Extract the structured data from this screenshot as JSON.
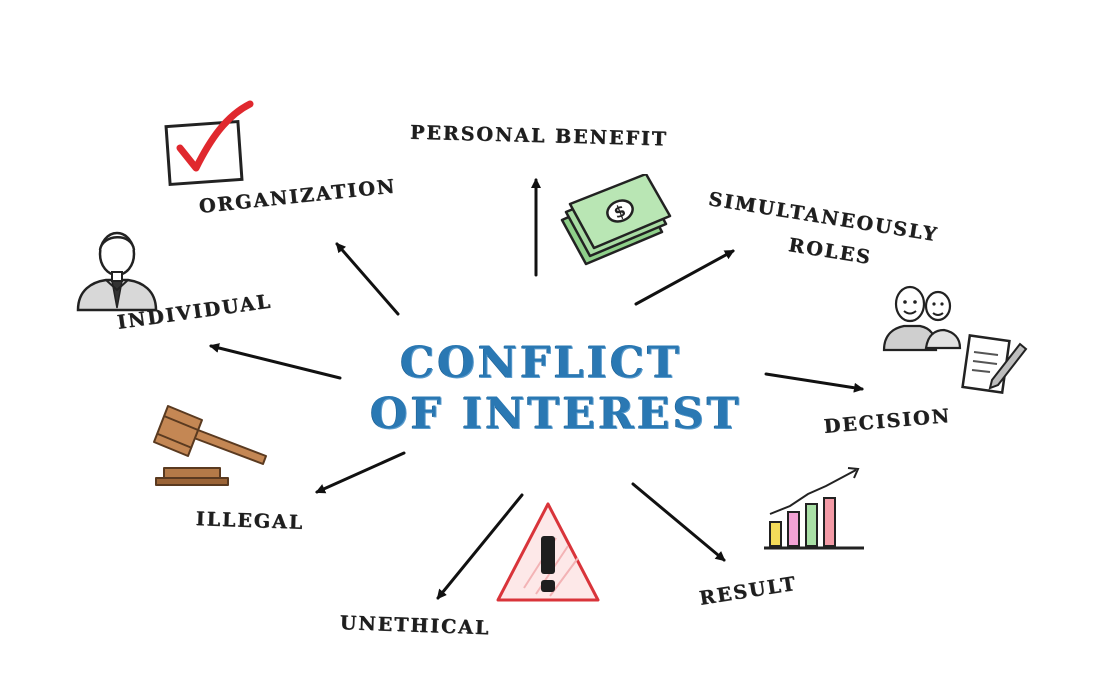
{
  "center": {
    "line1": "CONFLICT",
    "line2": "OF INTEREST",
    "color": "#2a78b3"
  },
  "labels": {
    "personal_benefit": "PERSONAL BENEFIT",
    "simultaneously": "SIMULTANEOUSLY",
    "roles": "ROLES",
    "organization": "ORGANIZATION",
    "individual": "INDIVIDUAL",
    "decision": "DECISION",
    "illegal": "ILLEGAL",
    "result": "RESULT",
    "unethical": "UNETHICAL"
  },
  "icons": {
    "checkbox": "checkmark-box-icon",
    "person": "businessman-icon",
    "money": "money-stack-icon",
    "team": "people-icon",
    "document": "document-pen-icon",
    "gavel": "gavel-icon",
    "warning": "warning-triangle-icon",
    "chart": "bar-chart-icon"
  },
  "colors": {
    "text": "#1e1e1e",
    "arrow": "#111111",
    "check_red": "#e0282e",
    "warning_red": "#d9343a",
    "money_green": "#7fc97a",
    "gavel_brown": "#b47a48"
  }
}
